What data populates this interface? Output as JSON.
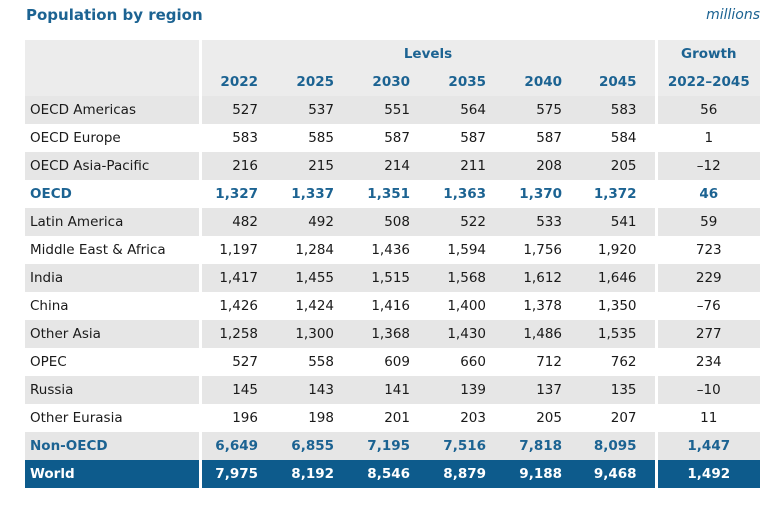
{
  "title": "Population by region",
  "units": "millions",
  "header": {
    "levels": "Levels",
    "growth": "Growth",
    "years": [
      "2022",
      "2025",
      "2030",
      "2035",
      "2040",
      "2045"
    ],
    "growth_period": "2022–2045"
  },
  "rows": [
    {
      "label": "OECD Americas",
      "values": [
        "527",
        "537",
        "551",
        "564",
        "575",
        "583"
      ],
      "growth": "56"
    },
    {
      "label": "OECD Europe",
      "values": [
        "583",
        "585",
        "587",
        "587",
        "587",
        "584"
      ],
      "growth": "1"
    },
    {
      "label": "OECD Asia-Pacific",
      "values": [
        "216",
        "215",
        "214",
        "211",
        "208",
        "205"
      ],
      "growth": "–12"
    },
    {
      "label": "OECD",
      "values": [
        "1,327",
        "1,337",
        "1,351",
        "1,363",
        "1,370",
        "1,372"
      ],
      "growth": "46"
    },
    {
      "label": "Latin America",
      "values": [
        "482",
        "492",
        "508",
        "522",
        "533",
        "541"
      ],
      "growth": "59"
    },
    {
      "label": "Middle East & Africa",
      "values": [
        "1,197",
        "1,284",
        "1,436",
        "1,594",
        "1,756",
        "1,920"
      ],
      "growth": "723"
    },
    {
      "label": "India",
      "values": [
        "1,417",
        "1,455",
        "1,515",
        "1,568",
        "1,612",
        "1,646"
      ],
      "growth": "229"
    },
    {
      "label": "China",
      "values": [
        "1,426",
        "1,424",
        "1,416",
        "1,400",
        "1,378",
        "1,350"
      ],
      "growth": "–76"
    },
    {
      "label": "Other Asia",
      "values": [
        "1,258",
        "1,300",
        "1,368",
        "1,430",
        "1,486",
        "1,535"
      ],
      "growth": "277"
    },
    {
      "label": "OPEC",
      "values": [
        "527",
        "558",
        "609",
        "660",
        "712",
        "762"
      ],
      "growth": "234"
    },
    {
      "label": "Russia",
      "values": [
        "145",
        "143",
        "141",
        "139",
        "137",
        "135"
      ],
      "growth": "–10"
    },
    {
      "label": "Other Eurasia",
      "values": [
        "196",
        "198",
        "201",
        "203",
        "205",
        "207"
      ],
      "growth": "11"
    },
    {
      "label": "Non-OECD",
      "values": [
        "6,649",
        "6,855",
        "7,195",
        "7,516",
        "7,818",
        "8,095"
      ],
      "growth": "1,447"
    },
    {
      "label": "World",
      "values": [
        "7,975",
        "8,192",
        "8,546",
        "8,879",
        "9,188",
        "9,468"
      ],
      "growth": "1,492"
    }
  ]
}
